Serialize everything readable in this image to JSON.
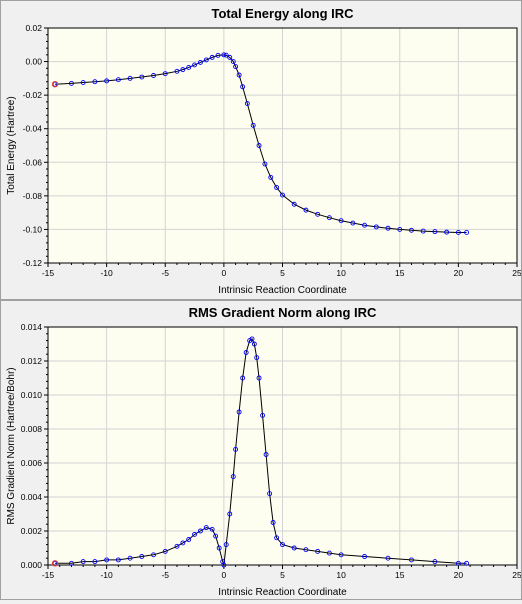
{
  "chart_data": [
    {
      "type": "line",
      "title": "Total Energy along IRC",
      "xlabel": "Intrinsic Reaction Coordinate",
      "ylabel": "Total Energy (Hartree)",
      "xlim": [
        -15,
        25
      ],
      "ylim": [
        -0.12,
        0.02
      ],
      "xticks": [
        -15,
        -10,
        -5,
        0,
        5,
        10,
        15,
        20,
        25
      ],
      "yticks": [
        0.02,
        0.0,
        -0.02,
        -0.04,
        -0.06,
        -0.08,
        -0.1,
        -0.12
      ],
      "xtick_labels": [
        "-15",
        "-10",
        "-5",
        "0",
        "5",
        "10",
        "15",
        "20",
        "25"
      ],
      "ytick_labels": [
        "0.02",
        "0.00",
        "-0.02",
        "-0.04",
        "-0.06",
        "-0.08",
        "-0.10",
        "-0.12"
      ],
      "grid": true,
      "series": [
        {
          "x": [
            -14.4,
            -13.0,
            -12.0,
            -11.0,
            -10.0,
            -9.0,
            -8.0,
            -7.0,
            -6.0,
            -5.0,
            -4.0,
            -3.5,
            -3.0,
            -2.5,
            -2.0,
            -1.5,
            -1.0,
            -0.5,
            0.0,
            0.2,
            0.5,
            0.8,
            1.0,
            1.3,
            1.6,
            2.0,
            2.5,
            3.0,
            3.5,
            4.0,
            4.5,
            5.0,
            6.0,
            7.0,
            8.0,
            9.0,
            10.0,
            11.0,
            12.0,
            13.0,
            14.0,
            15.0,
            16.0,
            17.0,
            18.0,
            19.0,
            20.0,
            20.7
          ],
          "y": [
            -0.0135,
            -0.013,
            -0.0125,
            -0.012,
            -0.0115,
            -0.0108,
            -0.01,
            -0.0092,
            -0.0083,
            -0.0072,
            -0.0058,
            -0.0048,
            -0.0035,
            -0.002,
            -0.0005,
            0.001,
            0.0025,
            0.0037,
            0.004,
            0.0038,
            0.0025,
            0.0,
            -0.003,
            -0.008,
            -0.015,
            -0.025,
            -0.038,
            -0.05,
            -0.061,
            -0.069,
            -0.075,
            -0.0795,
            -0.085,
            -0.0885,
            -0.091,
            -0.093,
            -0.0948,
            -0.0962,
            -0.0975,
            -0.0985,
            -0.0993,
            -0.1,
            -0.1005,
            -0.101,
            -0.1013,
            -0.1016,
            -0.1018,
            -0.1018
          ]
        }
      ]
    },
    {
      "type": "line",
      "title": "RMS Gradient Norm along IRC",
      "xlabel": "Intrinsic Reaction Coordinate",
      "ylabel": "RMS Gradient Norm (Hartree/Bohr)",
      "xlim": [
        -15,
        25
      ],
      "ylim": [
        0,
        0.014
      ],
      "xticks": [
        -15,
        -10,
        -5,
        0,
        5,
        10,
        15,
        20,
        25
      ],
      "yticks": [
        0.014,
        0.012,
        0.01,
        0.008,
        0.006,
        0.004,
        0.002,
        0.0
      ],
      "xtick_labels": [
        "-15",
        "-10",
        "-5",
        "0",
        "5",
        "10",
        "15",
        "20",
        "25"
      ],
      "ytick_labels": [
        "0.014",
        "0.012",
        "0.010",
        "0.008",
        "0.006",
        "0.004",
        "0.002",
        "0.000"
      ],
      "grid": true,
      "series": [
        {
          "x": [
            -14.4,
            -13.0,
            -12.0,
            -11.0,
            -10.0,
            -9.0,
            -8.0,
            -7.0,
            -6.0,
            -5.0,
            -4.0,
            -3.5,
            -3.0,
            -2.5,
            -2.0,
            -1.5,
            -1.0,
            -0.7,
            -0.4,
            -0.1,
            0.0,
            0.2,
            0.5,
            0.8,
            1.0,
            1.3,
            1.6,
            1.9,
            2.2,
            2.4,
            2.6,
            2.8,
            3.0,
            3.3,
            3.6,
            3.9,
            4.2,
            4.5,
            5.0,
            6.0,
            7.0,
            8.0,
            9.0,
            10.0,
            12.0,
            14.0,
            16.0,
            18.0,
            20.0,
            20.7
          ],
          "y": [
            0.0001,
            0.0001,
            0.0002,
            0.0002,
            0.0003,
            0.0003,
            0.0004,
            0.0005,
            0.0006,
            0.0008,
            0.0011,
            0.0013,
            0.0015,
            0.0018,
            0.002,
            0.0022,
            0.0021,
            0.0017,
            0.001,
            0.0002,
            0.0,
            0.0012,
            0.003,
            0.0052,
            0.0068,
            0.009,
            0.011,
            0.0125,
            0.0132,
            0.0133,
            0.013,
            0.0122,
            0.011,
            0.0088,
            0.0065,
            0.0042,
            0.0025,
            0.0016,
            0.0012,
            0.001,
            0.0009,
            0.0008,
            0.0007,
            0.0006,
            0.0005,
            0.0004,
            0.0003,
            0.0002,
            0.0001,
            0.0001
          ]
        }
      ]
    }
  ],
  "colors": {
    "plot_bg": "#fdfdf0",
    "grid": "#d4d4d4",
    "line": "#000000",
    "marker": "#0000ff",
    "endpoint_marker": "#e04040"
  }
}
